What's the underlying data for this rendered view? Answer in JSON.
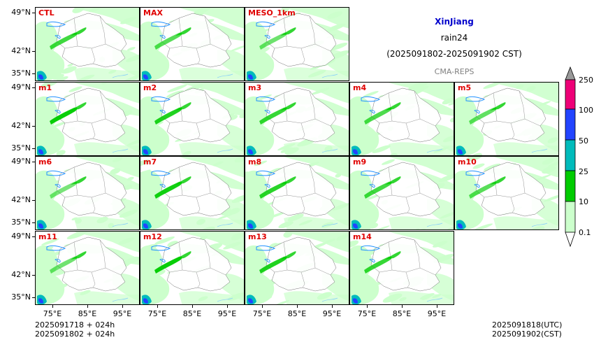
{
  "header": {
    "region": "XinJiang",
    "variable": "rain24",
    "period": "(2025091802-2025091902 CST)",
    "source": "CMA-REPS"
  },
  "panels": [
    {
      "label": "CTL",
      "row": 0,
      "col": 0
    },
    {
      "label": "MAX",
      "row": 0,
      "col": 1
    },
    {
      "label": "MESO_1km",
      "row": 0,
      "col": 2
    },
    {
      "label": "m1",
      "row": 1,
      "col": 0
    },
    {
      "label": "m2",
      "row": 1,
      "col": 1
    },
    {
      "label": "m3",
      "row": 1,
      "col": 2
    },
    {
      "label": "m4",
      "row": 1,
      "col": 3
    },
    {
      "label": "m5",
      "row": 1,
      "col": 4
    },
    {
      "label": "m6",
      "row": 2,
      "col": 0
    },
    {
      "label": "m7",
      "row": 2,
      "col": 1
    },
    {
      "label": "m8",
      "row": 2,
      "col": 2
    },
    {
      "label": "m9",
      "row": 2,
      "col": 3
    },
    {
      "label": "m10",
      "row": 2,
      "col": 4
    },
    {
      "label": "m11",
      "row": 3,
      "col": 0
    },
    {
      "label": "m12",
      "row": 3,
      "col": 1
    },
    {
      "label": "m13",
      "row": 3,
      "col": 2
    },
    {
      "label": "m14",
      "row": 3,
      "col": 3
    }
  ],
  "axes": {
    "lat_labels": [
      "49°N",
      "42°N",
      "35°N"
    ],
    "lon_labels": [
      "75°E",
      "85°E",
      "95°E"
    ]
  },
  "colorbar": {
    "levels": [
      "0.1",
      "10",
      "25",
      "50",
      "100",
      "250"
    ],
    "colors": [
      "#ccffcc",
      "#00cc00",
      "#00bbbb",
      "#2244ff",
      "#ee0077"
    ]
  },
  "footer": {
    "init_line": "2025091718  +  024h",
    "cst_line": "2025091802  +  024h",
    "valid_utc": "2025091818(UTC)",
    "valid_cst": "2025091902(CST)"
  }
}
